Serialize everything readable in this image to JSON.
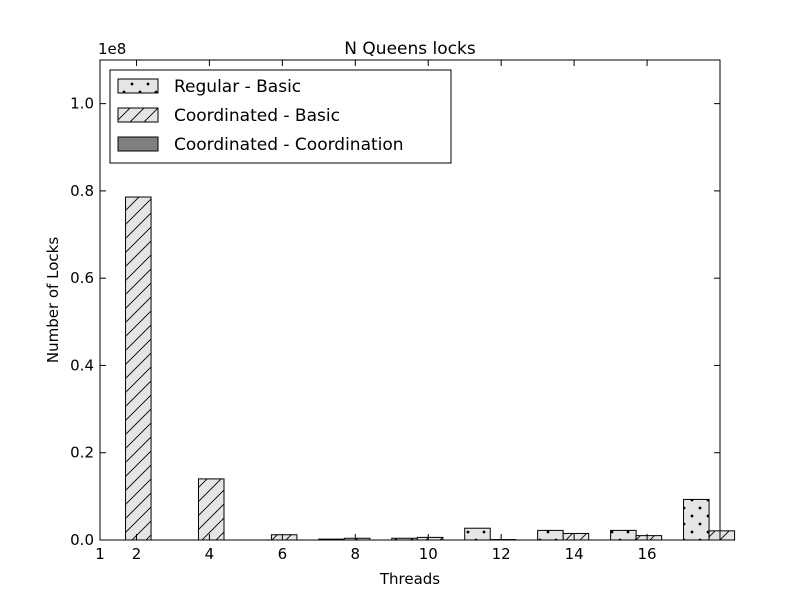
{
  "chart_data": {
    "type": "bar",
    "title": "N Queens locks",
    "xlabel": "Threads",
    "ylabel": "Number of Locks",
    "y_multiplier_label": "1e8",
    "xlim": [
      1,
      18
    ],
    "ylim": [
      0,
      1.1
    ],
    "x_ticks": [
      1,
      2,
      4,
      6,
      8,
      10,
      12,
      14,
      16
    ],
    "y_ticks": [
      0.0,
      0.2,
      0.4,
      0.6,
      0.8,
      1.0
    ],
    "x_tick_labels": [
      "1",
      "2",
      "4",
      "6",
      "8",
      "10",
      "12",
      "14",
      "16"
    ],
    "y_tick_labels": [
      "0.0",
      "0.2",
      "0.4",
      "0.6",
      "0.8",
      "1.0"
    ],
    "grid": false,
    "legend_position": "top-left",
    "x": [
      1,
      3,
      5,
      7,
      9,
      11,
      13,
      15,
      17
    ],
    "bar_width": 0.7,
    "series": [
      {
        "name": "Regular - Basic",
        "hatch": "dots",
        "color": "#e5e5e5",
        "offset": 0,
        "values": [
          0,
          0,
          0,
          0.002,
          0.004,
          0.027,
          0.022,
          0.022,
          0.093
        ]
      },
      {
        "name": "Coordinated - Basic",
        "hatch": "diagonal",
        "color": "#e5e5e5",
        "offset": 0.7,
        "values": [
          0.786,
          0.14,
          0.012,
          0.004,
          0.006,
          0.001,
          0.015,
          0.01,
          0.021
        ]
      },
      {
        "name": "Coordinated - Coordination",
        "hatch": "none",
        "color": "#808080",
        "offset": 1.4,
        "values": [
          0,
          0,
          0,
          0,
          0,
          0,
          0,
          0,
          0
        ]
      }
    ]
  }
}
